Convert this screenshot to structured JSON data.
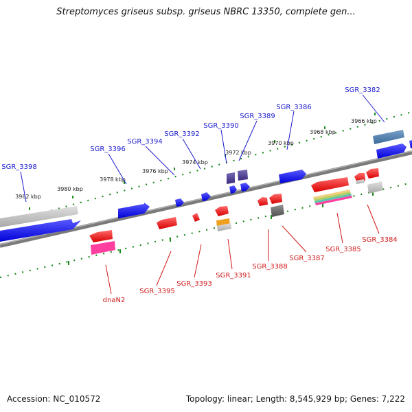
{
  "title": "Streptomyces griseus subsp. griseus NBRC 13350, complete gen...",
  "footer": {
    "accession": "Accession: NC_010572",
    "stats": "Topology: linear; Length: 8,545,929 bp; Genes: 7,222"
  },
  "colors": {
    "blue_label": "#1a1ad0",
    "red_label": "#d01818",
    "forward_gene": "#1010ff",
    "reverse_gene": "#ff1010",
    "tick": "#1a8a1a",
    "axis": "#808080"
  },
  "scale_labels": [
    "3982 kbp",
    "3980 kbp",
    "3978 kbp",
    "3976 kbp",
    "3974 kbp",
    "3972 kbp",
    "3970 kbp",
    "3968 kbp",
    "3966 kbp"
  ],
  "top_genes": [
    "SGR_3398",
    "SGR_3396",
    "SGR_3394",
    "SGR_3392",
    "SGR_3390",
    "SGR_3389",
    "SGR_3386",
    "SGR_3382"
  ],
  "bottom_genes": [
    "dnaN2",
    "SGR_3395",
    "SGR_3393",
    "SGR_3391",
    "SGR_3388",
    "SGR_3387",
    "SGR_3385",
    "SGR_3384"
  ]
}
